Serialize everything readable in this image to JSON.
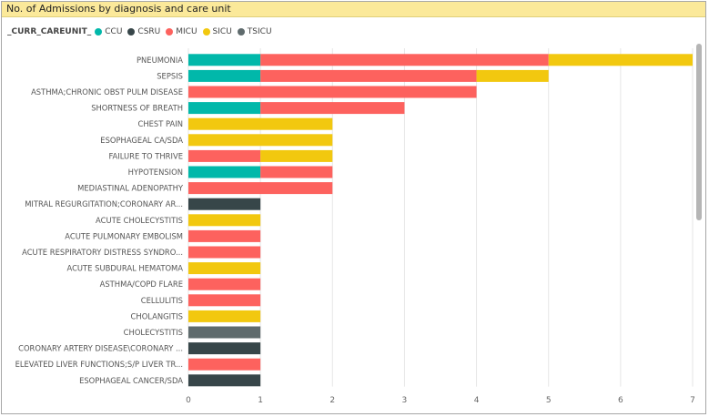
{
  "title": "No. of Admissions by diagnosis and care unit",
  "legend": {
    "title": "_CURR_CAREUNIT_",
    "items": [
      {
        "name": "CCU",
        "color": "#01b8aa"
      },
      {
        "name": "CSRU",
        "color": "#374649"
      },
      {
        "name": "MICU",
        "color": "#fd625e"
      },
      {
        "name": "SICU",
        "color": "#f2c80f"
      },
      {
        "name": "TSICU",
        "color": "#5f6b6d"
      }
    ]
  },
  "chart_data": {
    "type": "bar",
    "orientation": "horizontal",
    "stacked": true,
    "title": "No. of Admissions by diagnosis and care unit",
    "xlim": [
      0,
      7
    ],
    "x_ticks": [
      "0",
      "1",
      "2",
      "3",
      "4",
      "5",
      "6",
      "7"
    ],
    "grid": true,
    "legend_position": "top-left",
    "categories": [
      "PNEUMONIA",
      "SEPSIS",
      "ASTHMA;CHRONIC OBST PULM DISEASE",
      "SHORTNESS OF BREATH",
      "CHEST PAIN",
      "ESOPHAGEAL CA/SDA",
      "FAILURE TO THRIVE",
      "HYPOTENSION",
      "MEDIASTINAL ADENOPATHY",
      "MITRAL REGURGITATION;CORONARY AR...",
      "ACUTE CHOLECYSTITIS",
      "ACUTE PULMONARY EMBOLISM",
      "ACUTE RESPIRATORY DISTRESS SYNDRO...",
      "ACUTE SUBDURAL HEMATOMA",
      "ASTHMA/COPD FLARE",
      "CELLULITIS",
      "CHOLANGITIS",
      "CHOLECYSTITIS",
      "CORONARY ARTERY DISEASE\\CORONARY ...",
      "ELEVATED LIVER FUNCTIONS;S/P LIVER TR...",
      "ESOPHAGEAL CANCER/SDA"
    ],
    "series": [
      {
        "name": "CCU",
        "color": "#01b8aa",
        "values": [
          1,
          1,
          0,
          1,
          0,
          0,
          0,
          1,
          0,
          0,
          0,
          0,
          0,
          0,
          0,
          0,
          0,
          0,
          0,
          0,
          0
        ]
      },
      {
        "name": "CSRU",
        "color": "#374649",
        "values": [
          0,
          0,
          0,
          0,
          0,
          0,
          0,
          0,
          0,
          1,
          0,
          0,
          0,
          0,
          0,
          0,
          0,
          0,
          1,
          0,
          1
        ]
      },
      {
        "name": "MICU",
        "color": "#fd625e",
        "values": [
          4,
          3,
          4,
          2,
          0,
          0,
          1,
          1,
          2,
          0,
          0,
          1,
          1,
          0,
          1,
          1,
          0,
          0,
          0,
          1,
          0
        ]
      },
      {
        "name": "SICU",
        "color": "#f2c80f",
        "values": [
          2,
          1,
          0,
          0,
          2,
          2,
          1,
          0,
          0,
          0,
          1,
          0,
          0,
          1,
          0,
          0,
          1,
          0,
          0,
          0,
          0
        ]
      },
      {
        "name": "TSICU",
        "color": "#5f6b6d",
        "values": [
          0,
          0,
          0,
          0,
          0,
          0,
          0,
          0,
          0,
          0,
          0,
          0,
          0,
          0,
          0,
          0,
          0,
          1,
          0,
          0,
          0
        ]
      }
    ]
  }
}
